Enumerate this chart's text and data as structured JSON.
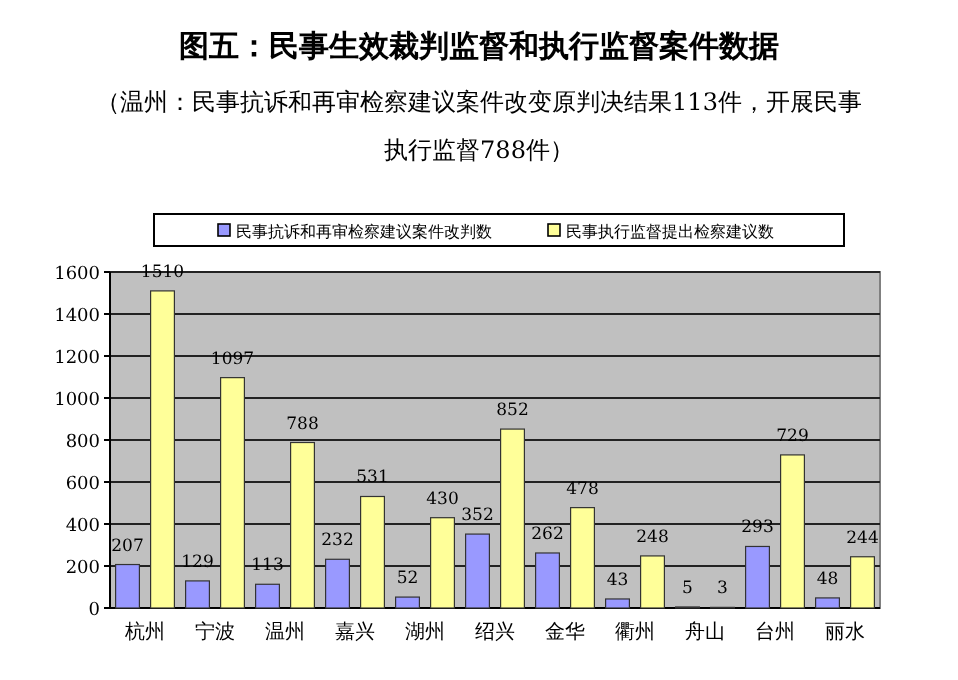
{
  "chart_data": {
    "type": "bar",
    "title": "图五：民事生效裁判监督和执行监督案件数据",
    "subtitle": "（温州：民事抗诉和再审检察建议案件改变原判决结果113件，开展民事执行监督788件）",
    "categories": [
      "杭州",
      "宁波",
      "温州",
      "嘉兴",
      "湖州",
      "绍兴",
      "金华",
      "衢州",
      "舟山",
      "台州",
      "丽水"
    ],
    "series": [
      {
        "name": "民事抗诉和再审检察建议案件改判数",
        "color": "#9999ff",
        "values": [
          207,
          129,
          113,
          232,
          52,
          352,
          262,
          43,
          5,
          293,
          48
        ]
      },
      {
        "name": "民事执行监督提出检察建议数",
        "color": "#ffff99",
        "values": [
          1510,
          1097,
          788,
          531,
          430,
          852,
          478,
          248,
          3,
          729,
          244
        ]
      }
    ],
    "ylim": [
      0,
      1600
    ],
    "yticks": [
      0,
      200,
      400,
      600,
      800,
      1000,
      1200,
      1400,
      1600
    ],
    "grid": "y",
    "legend": "top",
    "data_labels": true
  }
}
